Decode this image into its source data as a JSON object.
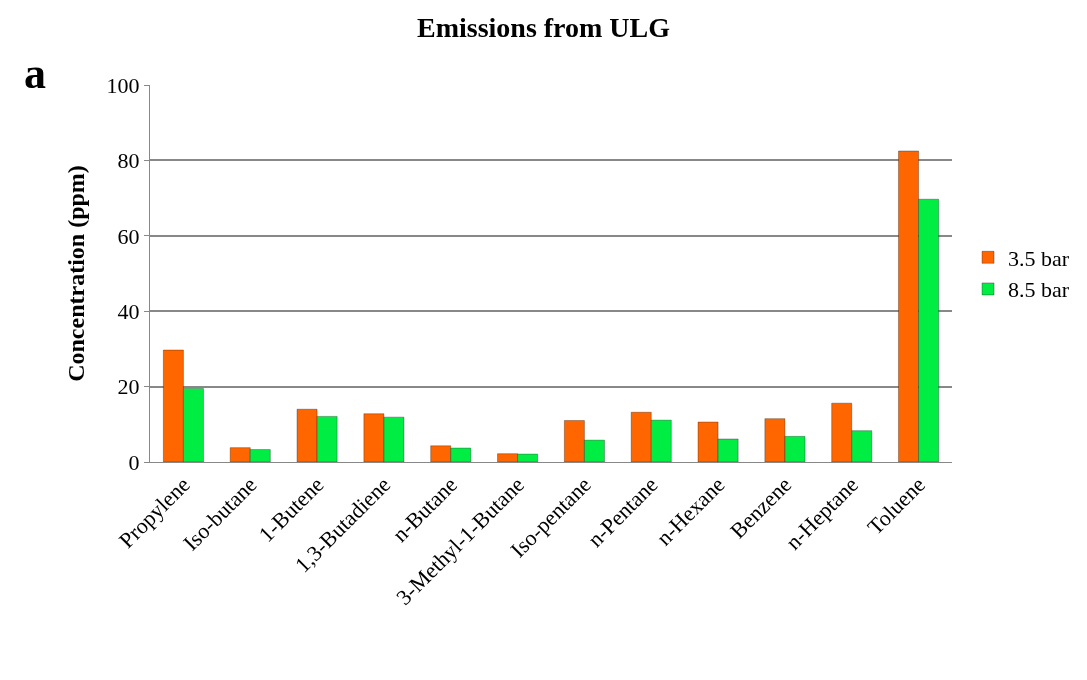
{
  "chart_data": {
    "type": "bar",
    "title": "Emissions from ULG",
    "ylabel": "Concentration (ppm)",
    "annotations": [
      "a"
    ],
    "categories": [
      "Propylene",
      "Iso-butane",
      "1-Butene",
      "1,3-Butadiene",
      "n-Butane",
      "3-Methyl-1-Butane",
      "Iso-pentane",
      "n-Pentane",
      "n-Hexane",
      "Benzene",
      "n-Heptane",
      "Toluene"
    ],
    "series": [
      {
        "name": "3.5 bar",
        "color": "#ff6600",
        "values": [
          29.7,
          3.8,
          14.0,
          12.8,
          4.3,
          2.2,
          11.0,
          13.2,
          10.6,
          11.5,
          15.6,
          82.5
        ]
      },
      {
        "name": "8.5 bar",
        "color": "#00ee44",
        "values": [
          19.5,
          3.3,
          12.1,
          11.9,
          3.7,
          2.1,
          5.8,
          11.1,
          6.1,
          6.8,
          8.3,
          69.7
        ]
      }
    ],
    "ylim": [
      0,
      100
    ],
    "yticks": [
      0,
      20,
      40,
      60,
      80,
      100
    ],
    "grid": "y",
    "legend": "right"
  }
}
